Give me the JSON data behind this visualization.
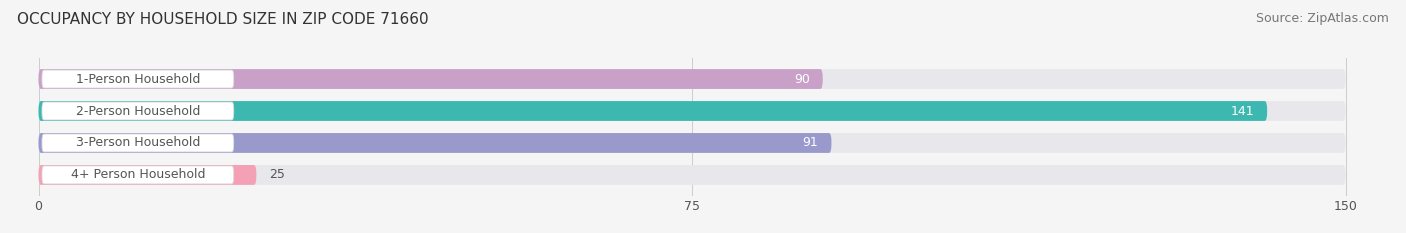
{
  "title": "OCCUPANCY BY HOUSEHOLD SIZE IN ZIP CODE 71660",
  "source": "Source: ZipAtlas.com",
  "categories": [
    "1-Person Household",
    "2-Person Household",
    "3-Person Household",
    "4+ Person Household"
  ],
  "values": [
    90,
    141,
    91,
    25
  ],
  "bar_colors": [
    "#c9a0c8",
    "#3cb8b0",
    "#9999cc",
    "#f4a0b5"
  ],
  "bg_bar_color": "#e8e8ec",
  "label_bg": "#ffffff",
  "xlim_data": [
    0,
    150
  ],
  "xticks": [
    0,
    75,
    150
  ],
  "title_fontsize": 11,
  "source_fontsize": 9,
  "label_fontsize": 9,
  "value_fontsize": 9,
  "bar_height": 0.62,
  "background_color": "#f5f5f5",
  "value_outside_color": "#555555",
  "value_inside_color": "#ffffff"
}
